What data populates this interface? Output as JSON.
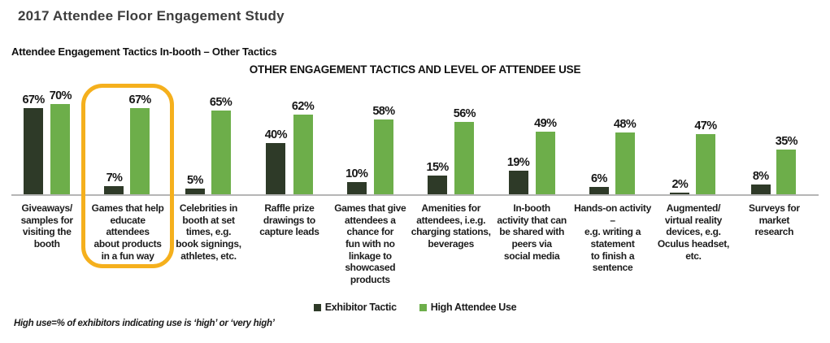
{
  "header": {
    "title": "2017 Attendee Floor Engagement Study",
    "subtitle": "Attendee Engagement Tactics In-booth – Other Tactics"
  },
  "chart_data": {
    "type": "bar",
    "title": "OTHER ENGAGEMENT TACTICS AND LEVEL OF ATTENDEE USE",
    "categories": [
      "Giveaways/\nsamples for\nvisiting the\nbooth",
      "Games that help\neducate attendees\nabout products\nin a fun way",
      "Celebrities in\nbooth at set\ntimes, e.g.\nbook signings,\nathletes, etc.",
      "Raffle prize\ndrawings to\ncapture leads",
      "Games that give\nattendees a\nchance for\nfun with no\nlinkage to\nshowcased\nproducts",
      "Amenities for\nattendees, i.e.g.\ncharging stations,\nbeverages",
      "In-booth\nactivity that can\nbe shared with\npeers via\nsocial media",
      "Hands-on activity –\ne.g. writing a\nstatement\nto finish a\nsentence",
      "Augmented/\nvirtual reality\ndevices, e.g.\nOculus headset,\netc.",
      "Surveys for\nmarket\nresearch"
    ],
    "series": [
      {
        "name": "Exhibitor Tactic",
        "color": "#2e3a28",
        "values": [
          67,
          7,
          5,
          40,
          10,
          15,
          19,
          6,
          2,
          8
        ]
      },
      {
        "name": "High Attendee Use",
        "color": "#6dae4a",
        "values": [
          70,
          67,
          65,
          62,
          58,
          56,
          49,
          48,
          47,
          35
        ]
      }
    ],
    "value_suffix": "%",
    "ylim": [
      0,
      80
    ],
    "grid": false,
    "legend_position": "bottom",
    "highlighted_category_index": 1,
    "highlight_color": "#f5b01d",
    "axis_color": "#b5b5b5"
  },
  "footnote": "High use=% of exhibitors indicating use is ‘high’ or ‘very high’"
}
